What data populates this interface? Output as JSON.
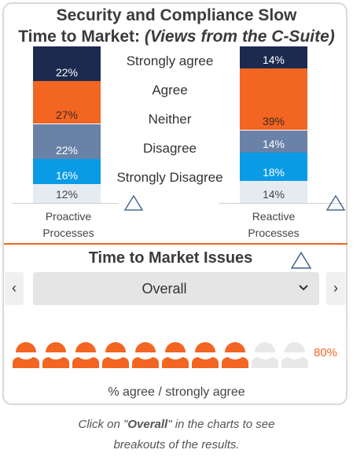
{
  "header": {
    "title_line1": "Security and Compliance Slow",
    "title_line2_prefix": "Time to Market: ",
    "title_line2_italic": "(Views from the C-Suite)"
  },
  "chart_data": {
    "type": "bar",
    "stacked": true,
    "title": "Security and Compliance Slow Time to Market: (Views from the C-Suite)",
    "categories": [
      "Proactive Processes",
      "Reactive Processes"
    ],
    "series": [
      {
        "name": "Strongly agree",
        "values": [
          22,
          14
        ],
        "color": "#1b2a4e"
      },
      {
        "name": "Agree",
        "values": [
          27,
          39
        ],
        "color": "#f26522"
      },
      {
        "name": "Neither",
        "values": [
          22,
          14
        ],
        "color": "#6a82a8"
      },
      {
        "name": "Disagree",
        "values": [
          16,
          18
        ],
        "color": "#0a9be6"
      },
      {
        "name": "Strongly Disagree",
        "values": [
          12,
          14
        ],
        "color": "#e4ebf1"
      }
    ],
    "data_labels": [
      [
        "22%",
        "27%",
        "22%",
        "16%",
        "12%"
      ],
      [
        "14%",
        "39%",
        "14%",
        "18%",
        "14%"
      ]
    ],
    "legend_placement": "center-between-bars"
  },
  "x_labels": {
    "proactive_line1": "Proactive",
    "proactive_line2": "Processes",
    "reactive_line1": "Reactive",
    "reactive_line2": "Processes"
  },
  "legend": {
    "strongly_agree": "Strongly agree",
    "agree": "Agree",
    "neither": "Neither",
    "disagree": "Disagree",
    "strongly_disagree": "Strongly Disagree"
  },
  "issues": {
    "title": "Time to Market Issues",
    "selected": "Overall",
    "prev_label": "‹",
    "next_label": "›",
    "percent": 80,
    "percent_label": "80%",
    "filled_icons": 8,
    "total_icons": 10,
    "caption": "% agree / strongly agree"
  },
  "footnote": {
    "line1_prefix": "Click on \"",
    "line1_bold": "Overall",
    "line1_suffix": "\" in the charts to see",
    "line2": "breakouts of the results."
  },
  "colors": {
    "accent": "#f26522",
    "empty_icon": "#e8e8e8",
    "dark_navy": "#1b2a4e",
    "steel_blue": "#6a82a8",
    "bright_blue": "#0a9be6",
    "light_gray_blue": "#e4ebf1"
  }
}
